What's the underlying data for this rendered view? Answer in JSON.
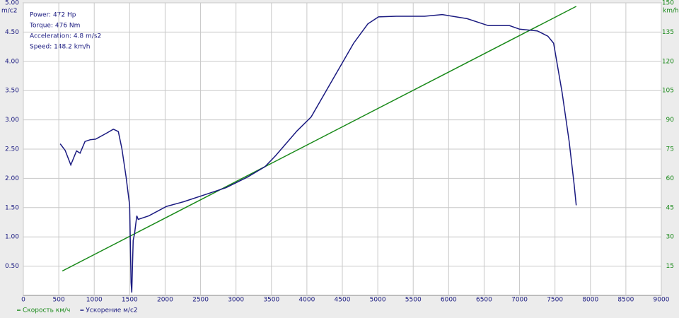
{
  "chart_data": {
    "type": "line",
    "info": [
      "Power: 472 Hp",
      "Torque: 476 Nm",
      "Acceleration: 4.8 m/s2",
      "Speed: 148.2 km/h"
    ],
    "ylabel": "m/c2",
    "y2label": "km/h",
    "xlim": [
      0,
      9000
    ],
    "xticks": [
      0,
      500,
      1000,
      1500,
      2000,
      2500,
      3000,
      3500,
      4000,
      4500,
      5000,
      5500,
      6000,
      6500,
      7000,
      7500,
      8000,
      8500,
      9000
    ],
    "ylim": [
      0,
      5
    ],
    "yticks": [
      {
        "value": 0.5,
        "label": "0.50"
      },
      {
        "value": 1,
        "label": "1.00"
      },
      {
        "value": 1.5,
        "label": "1.50"
      },
      {
        "value": 2,
        "label": "2.00"
      },
      {
        "value": 2.5,
        "label": "2.50"
      },
      {
        "value": 3,
        "label": "3.00"
      },
      {
        "value": 3.5,
        "label": "3.50"
      },
      {
        "value": 4,
        "label": "4.00"
      },
      {
        "value": 4.5,
        "label": "4.50"
      },
      {
        "value": 5,
        "label": "5.00"
      }
    ],
    "y2lim": [
      0,
      150
    ],
    "y2ticks": [
      15,
      30,
      45,
      60,
      75,
      90,
      105,
      120,
      135,
      150
    ],
    "grid": true,
    "legend": "bottom-left",
    "series": [
      {
        "name": "Скорость км/ч",
        "color": "#1a8a1a",
        "axis": "y2",
        "x": [
          550,
          7800
        ],
        "values": [
          12.5,
          148.2
        ]
      },
      {
        "name": "Ускорение м/с2",
        "color": "#1a1a80",
        "axis": "y",
        "x": [
          520,
          590,
          670,
          750,
          800,
          870,
          940,
          1020,
          1170,
          1270,
          1340,
          1390,
          1450,
          1500,
          1520,
          1530,
          1550,
          1570,
          1600,
          1620,
          1770,
          2020,
          2260,
          2560,
          2860,
          3160,
          3410,
          3560,
          3860,
          4060,
          4260,
          4460,
          4660,
          4860,
          5010,
          5260,
          5660,
          5910,
          6260,
          6560,
          6860,
          7000,
          7250,
          7400,
          7480,
          7600,
          7700,
          7770,
          7800
        ],
        "values": [
          2.59,
          2.48,
          2.23,
          2.47,
          2.43,
          2.63,
          2.66,
          2.67,
          2.77,
          2.84,
          2.8,
          2.51,
          2.02,
          1.54,
          0.22,
          0.05,
          0.94,
          1.06,
          1.36,
          1.3,
          1.36,
          1.52,
          1.6,
          1.72,
          1.84,
          2.02,
          2.2,
          2.39,
          2.81,
          3.05,
          3.47,
          3.89,
          4.31,
          4.64,
          4.76,
          4.77,
          4.77,
          4.8,
          4.73,
          4.61,
          4.61,
          4.55,
          4.52,
          4.43,
          4.31,
          3.47,
          2.63,
          1.9,
          1.54
        ]
      }
    ]
  }
}
